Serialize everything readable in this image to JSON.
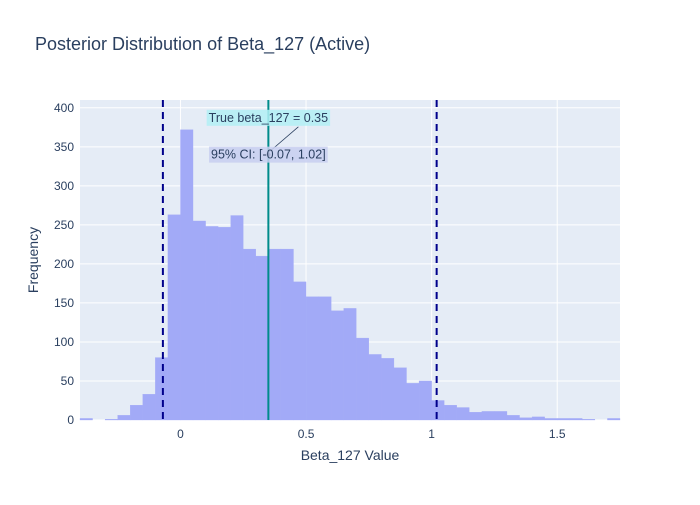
{
  "chart_data": {
    "type": "bar",
    "title": "Posterior Distribution of Beta_127 (Active)",
    "xlabel": "Beta_127 Value",
    "ylabel": "Frequency",
    "xlim": [
      -0.4,
      1.75
    ],
    "ylim": [
      0,
      410
    ],
    "xticks": [
      0,
      0.5,
      1,
      1.5
    ],
    "xtick_labels": [
      "0",
      "0.5",
      "1",
      "1.5"
    ],
    "yticks": [
      0,
      50,
      100,
      150,
      200,
      250,
      300,
      350,
      400
    ],
    "ytick_labels": [
      "0",
      "50",
      "100",
      "150",
      "200",
      "250",
      "300",
      "350",
      "400"
    ],
    "grid": true,
    "bin_width": 0.05,
    "bins": [
      {
        "x0": -0.4,
        "count": 2
      },
      {
        "x0": -0.35,
        "count": 0
      },
      {
        "x0": -0.3,
        "count": 1
      },
      {
        "x0": -0.25,
        "count": 6
      },
      {
        "x0": -0.2,
        "count": 19
      },
      {
        "x0": -0.15,
        "count": 33
      },
      {
        "x0": -0.1,
        "count": 80
      },
      {
        "x0": -0.05,
        "count": 263
      },
      {
        "x0": 0.0,
        "count": 372
      },
      {
        "x0": 0.05,
        "count": 255
      },
      {
        "x0": 0.1,
        "count": 248
      },
      {
        "x0": 0.15,
        "count": 247
      },
      {
        "x0": 0.2,
        "count": 262
      },
      {
        "x0": 0.25,
        "count": 219
      },
      {
        "x0": 0.3,
        "count": 210
      },
      {
        "x0": 0.35,
        "count": 219
      },
      {
        "x0": 0.4,
        "count": 219
      },
      {
        "x0": 0.45,
        "count": 177
      },
      {
        "x0": 0.5,
        "count": 158
      },
      {
        "x0": 0.55,
        "count": 158
      },
      {
        "x0": 0.6,
        "count": 140
      },
      {
        "x0": 0.65,
        "count": 143
      },
      {
        "x0": 0.7,
        "count": 105
      },
      {
        "x0": 0.75,
        "count": 84
      },
      {
        "x0": 0.8,
        "count": 79
      },
      {
        "x0": 0.85,
        "count": 67
      },
      {
        "x0": 0.9,
        "count": 47
      },
      {
        "x0": 0.95,
        "count": 50
      },
      {
        "x0": 1.0,
        "count": 25
      },
      {
        "x0": 1.05,
        "count": 19
      },
      {
        "x0": 1.1,
        "count": 16
      },
      {
        "x0": 1.15,
        "count": 10
      },
      {
        "x0": 1.2,
        "count": 11
      },
      {
        "x0": 1.25,
        "count": 11
      },
      {
        "x0": 1.3,
        "count": 6
      },
      {
        "x0": 1.35,
        "count": 3
      },
      {
        "x0": 1.4,
        "count": 4
      },
      {
        "x0": 1.45,
        "count": 2
      },
      {
        "x0": 1.5,
        "count": 2
      },
      {
        "x0": 1.55,
        "count": 2
      },
      {
        "x0": 1.6,
        "count": 1
      },
      {
        "x0": 1.65,
        "count": 0
      },
      {
        "x0": 1.7,
        "count": 2
      }
    ],
    "vlines": [
      {
        "x": -0.07,
        "style": "dash",
        "color": "#00008b",
        "label": "95% CI lower"
      },
      {
        "x": 1.02,
        "style": "dash",
        "color": "#00008b",
        "label": "95% CI upper"
      },
      {
        "x": 0.35,
        "style": "solid",
        "color": "#008b8b",
        "label": "True beta_127"
      }
    ],
    "annotations": [
      {
        "text": "True beta_127 = 0.35",
        "x": 0.35,
        "y": 400,
        "bgcolor": "#b3f0f5"
      },
      {
        "text": "95% CI: [-0.07, 1.02]",
        "x": 0.35,
        "y": 340,
        "bgcolor": "#c8cff0"
      }
    ],
    "colors": {
      "bar": "#a2aaf7",
      "plot_bg": "#e5ecf6",
      "grid": "#ffffff",
      "text": "#2a3f5f",
      "ci_line": "#00008b",
      "true_line": "#008b8b",
      "true_ann_bg": "#b3f0f5",
      "ci_ann_bg": "#c8cff0"
    }
  }
}
